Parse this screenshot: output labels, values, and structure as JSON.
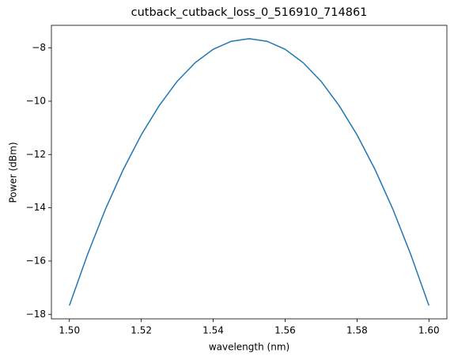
{
  "chart_data": {
    "type": "line",
    "title": "cutback_cutback_loss_0_516910_714861",
    "x_label": "wavelength (nm)",
    "y_label": "Power (dBm)",
    "x": [
      1.5,
      1.505,
      1.51,
      1.515,
      1.52,
      1.525,
      1.53,
      1.535,
      1.54,
      1.545,
      1.55,
      1.555,
      1.56,
      1.565,
      1.57,
      1.575,
      1.58,
      1.585,
      1.59,
      1.595,
      1.6
    ],
    "series": [
      {
        "color": "#1f77b4",
        "values": [
          -17.67,
          -15.77,
          -14.06,
          -12.56,
          -11.26,
          -10.16,
          -9.25,
          -8.55,
          -8.05,
          -7.75,
          -7.65,
          -7.75,
          -8.05,
          -8.55,
          -9.25,
          -10.16,
          -11.26,
          -12.56,
          -14.06,
          -15.77,
          -17.67
        ]
      }
    ],
    "xlim": [
      1.495,
      1.605
    ],
    "ylim": [
      -18.17,
      -7.15
    ],
    "xticks": [
      {
        "value": 1.5,
        "label": "1.50"
      },
      {
        "value": 1.52,
        "label": "1.52"
      },
      {
        "value": 1.54,
        "label": "1.54"
      },
      {
        "value": 1.56,
        "label": "1.56"
      },
      {
        "value": 1.58,
        "label": "1.58"
      },
      {
        "value": 1.6,
        "label": "1.60"
      }
    ],
    "yticks": [
      {
        "value": -18,
        "label": "−18"
      },
      {
        "value": -16,
        "label": "−16"
      },
      {
        "value": -14,
        "label": "−14"
      },
      {
        "value": -12,
        "label": "−12"
      },
      {
        "value": -10,
        "label": "−10"
      },
      {
        "value": -8,
        "label": "−8"
      }
    ]
  }
}
